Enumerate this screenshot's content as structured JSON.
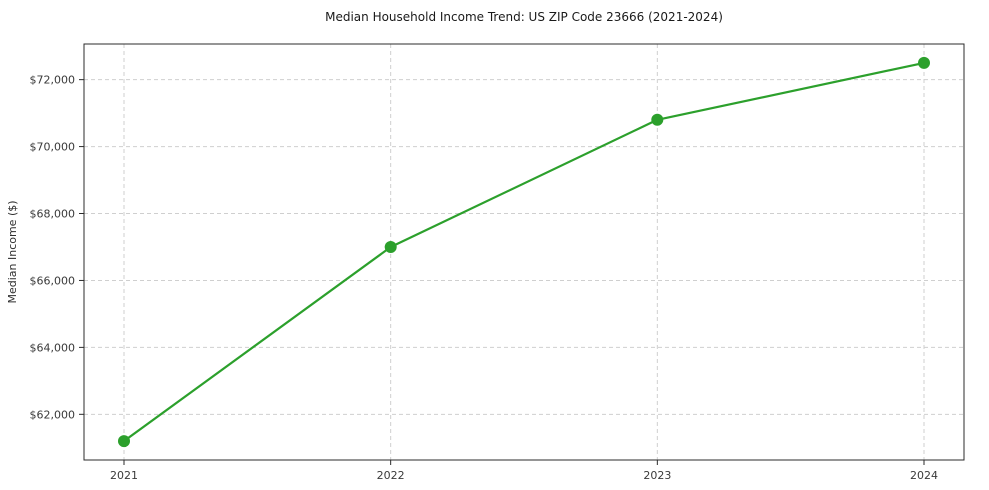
{
  "chart_data": {
    "type": "line",
    "title": "Median Household Income Trend: US ZIP Code 23666 (2021-2024)",
    "xlabel": "",
    "ylabel": "Median Income ($)",
    "categories": [
      "2021",
      "2022",
      "2023",
      "2024"
    ],
    "x": [
      2021,
      2022,
      2023,
      2024
    ],
    "series": [
      {
        "name": "Median Household Income",
        "values": [
          61200,
          67000,
          70800,
          72500
        ]
      }
    ],
    "yticks": [
      62000,
      64000,
      66000,
      68000,
      70000,
      72000
    ],
    "ytick_labels": [
      "$62,000",
      "$64,000",
      "$66,000",
      "$68,000",
      "$70,000",
      "$72,000"
    ],
    "ylim": [
      60635,
      73065
    ],
    "xlim": [
      2020.85,
      2024.15
    ],
    "grid": true,
    "legend": "none",
    "line_color": "#2ca02c",
    "marker": "circle",
    "marker_size": 6
  }
}
